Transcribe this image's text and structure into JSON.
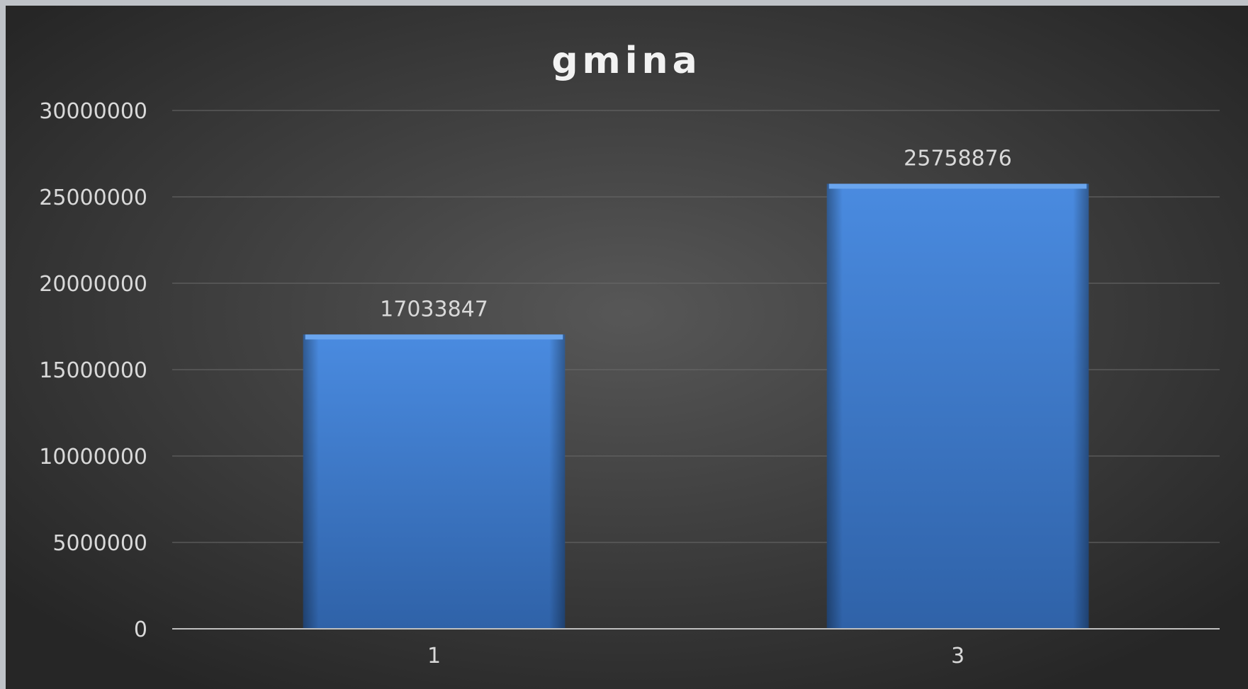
{
  "chart_data": {
    "type": "bar",
    "title": "gmina",
    "xlabel": "",
    "ylabel": "",
    "categories": [
      "1",
      "3"
    ],
    "values": [
      17033847,
      25758876
    ],
    "data_labels": [
      "17033847",
      "25758876"
    ],
    "ylim": [
      0,
      30000000
    ],
    "y_ticks": [
      "0",
      "5000000",
      "10000000",
      "15000000",
      "20000000",
      "25000000",
      "30000000"
    ],
    "y_tick_values": [
      0,
      5000000,
      10000000,
      15000000,
      20000000,
      25000000,
      30000000
    ],
    "grid": true,
    "legend": "none"
  },
  "colors": {
    "background_center": "#575757",
    "background_edge": "#262626",
    "bar": "#3f7fd0",
    "bar_top": "#6aa5ee",
    "text": "#d9d9d9"
  }
}
